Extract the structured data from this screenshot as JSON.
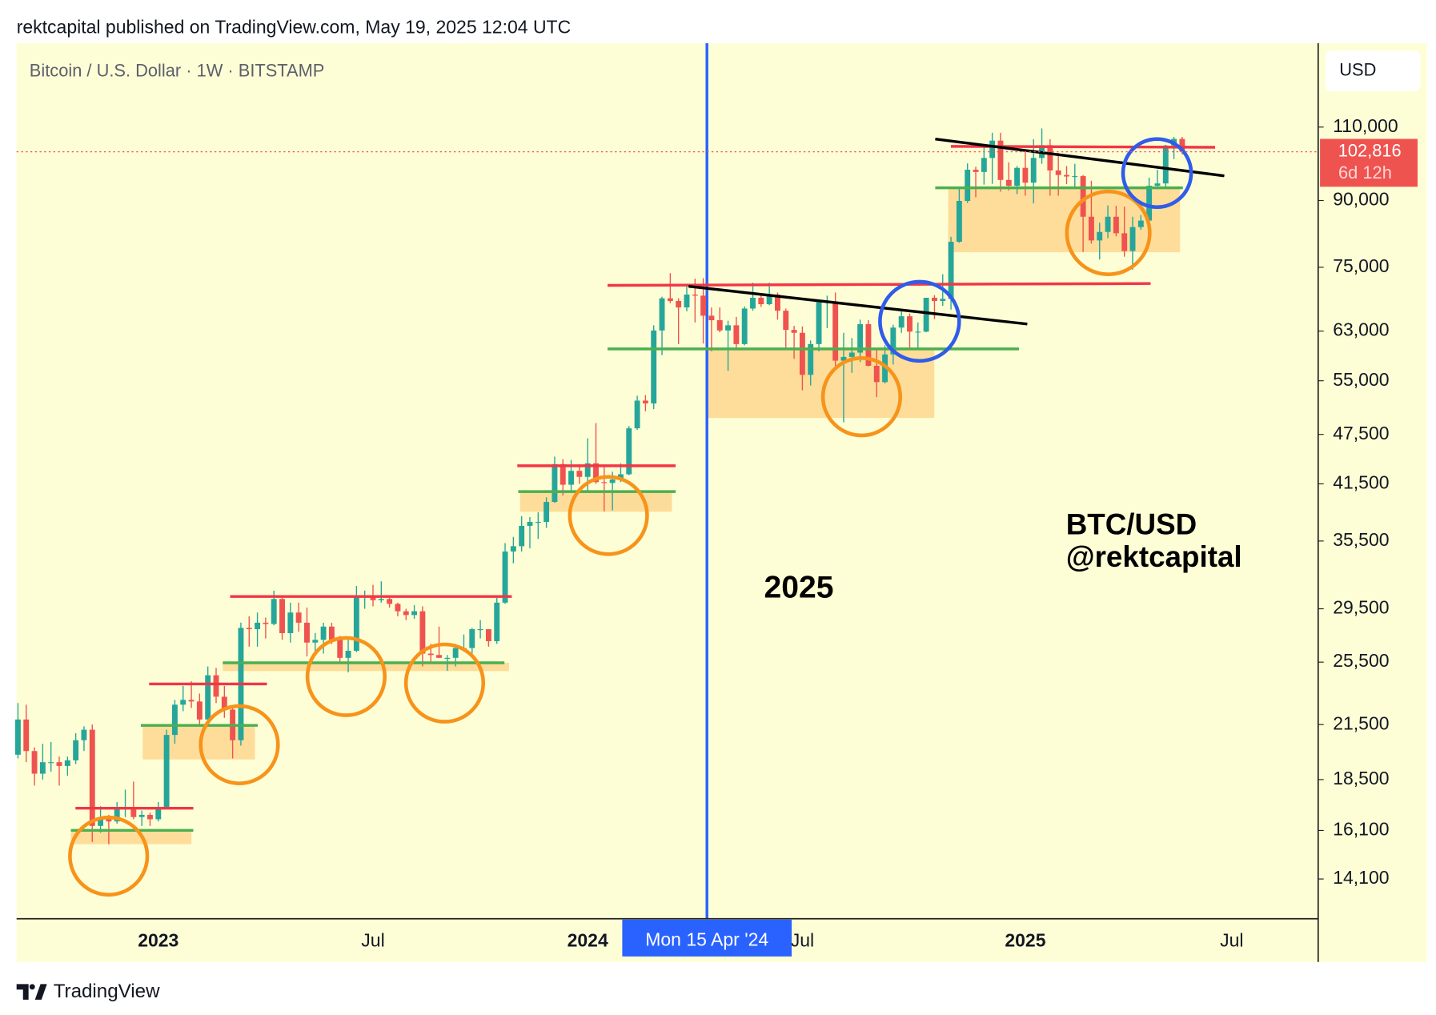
{
  "chart_data": {
    "type": "candlestick",
    "publisher_line": "rektcapital published on TradingView.com, May 19, 2025 12:04 UTC",
    "title": "Bitcoin / U.S. Dollar · 1W · BITSTAMP",
    "currency": "USD",
    "annotations": [
      "2025",
      "BTC/USD",
      "@rektcapital"
    ],
    "brand": "TradingView",
    "crosshair_label": "Mon 15 Apr '24",
    "log_scale": true,
    "up_color": "#26a69a",
    "down_color": "#ef5350",
    "ylim": [
      12650,
      138300
    ],
    "yticks": [
      {
        "value": 110000,
        "label": "110,000"
      },
      {
        "value": 90000,
        "label": "90,000"
      },
      {
        "value": 75000,
        "label": "75,000"
      },
      {
        "value": 63000,
        "label": "63,000"
      },
      {
        "value": 55000,
        "label": "55,000"
      },
      {
        "value": 47500,
        "label": "47,500"
      },
      {
        "value": 41500,
        "label": "41,500"
      },
      {
        "value": 35500,
        "label": "35,500"
      },
      {
        "value": 29500,
        "label": "29,500"
      },
      {
        "value": 25500,
        "label": "25,500"
      },
      {
        "value": 21500,
        "label": "21,500"
      },
      {
        "value": 18500,
        "label": "18,500"
      },
      {
        "value": 16100,
        "label": "16,100"
      },
      {
        "value": 14100,
        "label": "14,100"
      }
    ],
    "last_price": {
      "value": 102816,
      "label": "102,816"
    },
    "countdown": "6d 12h",
    "categories": [
      null,
      null,
      null,
      null,
      null,
      null,
      null,
      null,
      null,
      null,
      null,
      null,
      null,
      null,
      null,
      null,
      null,
      "2023",
      null,
      null,
      null,
      null,
      null,
      null,
      null,
      null,
      null,
      null,
      null,
      null,
      null,
      null,
      null,
      null,
      null,
      null,
      null,
      null,
      null,
      null,
      null,
      null,
      null,
      "Jul",
      null,
      null,
      null,
      null,
      null,
      null,
      null,
      null,
      null,
      null,
      null,
      null,
      null,
      null,
      null,
      null,
      null,
      null,
      null,
      null,
      null,
      null,
      null,
      null,
      null,
      "2024",
      null,
      null,
      null,
      null,
      null,
      null,
      null,
      null,
      null,
      null,
      null,
      null,
      null,
      null,
      null,
      null,
      null,
      null,
      null,
      null,
      null,
      null,
      null,
      null,
      null,
      "Jul",
      null,
      null,
      null,
      null,
      null,
      null,
      null,
      null,
      null,
      null,
      null,
      null,
      null,
      null,
      null,
      null,
      null,
      null,
      null,
      null,
      null,
      null,
      null,
      null,
      null,
      null,
      "2025",
      null,
      null,
      null,
      null,
      null,
      null,
      null,
      null,
      null,
      null,
      null,
      null,
      null,
      null,
      null,
      null,
      null,
      null,
      null,
      null,
      null,
      null,
      null,
      null,
      "Jul"
    ],
    "ohlc": [
      [
        19800,
        22800,
        19600,
        21800
      ],
      [
        21800,
        22700,
        19400,
        20000
      ],
      [
        20000,
        20200,
        18200,
        18800
      ],
      [
        18800,
        20400,
        18500,
        19400
      ],
      [
        19400,
        20500,
        18900,
        19400
      ],
      [
        19400,
        19700,
        18200,
        19200
      ],
      [
        19200,
        19700,
        18700,
        19500
      ],
      [
        19500,
        21000,
        19300,
        20600
      ],
      [
        20600,
        21400,
        20000,
        21200
      ],
      [
        21200,
        21500,
        15600,
        16300
      ],
      [
        16300,
        17200,
        16000,
        16600
      ],
      [
        16600,
        16800,
        15500,
        16500
      ],
      [
        16500,
        17400,
        16400,
        17100
      ],
      [
        17100,
        18000,
        16700,
        17100
      ],
      [
        17100,
        18400,
        16600,
        16700
      ],
      [
        16700,
        17000,
        16300,
        16800
      ],
      [
        16800,
        16900,
        16300,
        16600
      ],
      [
        16600,
        17400,
        16500,
        17100
      ],
      [
        17100,
        21200,
        17100,
        20900
      ],
      [
        20900,
        23000,
        20400,
        22700
      ],
      [
        22700,
        23900,
        22300,
        23000
      ],
      [
        23000,
        24200,
        22500,
        22900
      ],
      [
        22900,
        23400,
        21400,
        21800
      ],
      [
        21800,
        25200,
        21400,
        24600
      ],
      [
        24600,
        25100,
        22800,
        23200
      ],
      [
        23200,
        23900,
        21900,
        22400
      ],
      [
        22400,
        22600,
        19600,
        20600
      ],
      [
        20600,
        28400,
        20300,
        28000
      ],
      [
        28000,
        28900,
        26600,
        27900
      ],
      [
        27900,
        29200,
        26600,
        28400
      ],
      [
        28400,
        28800,
        27200,
        28300
      ],
      [
        28300,
        31000,
        28200,
        30300
      ],
      [
        30300,
        30400,
        27100,
        27600
      ],
      [
        27600,
        30000,
        26900,
        29200
      ],
      [
        29200,
        30000,
        27700,
        28400
      ],
      [
        28400,
        29600,
        25900,
        26900
      ],
      [
        26900,
        27600,
        26300,
        27100
      ],
      [
        27100,
        28400,
        26100,
        28100
      ],
      [
        28100,
        28400,
        26800,
        27100
      ],
      [
        27100,
        27400,
        25400,
        25800
      ],
      [
        25800,
        27100,
        24800,
        26300
      ],
      [
        26300,
        31400,
        26200,
        30500
      ],
      [
        30500,
        31000,
        29500,
        30600
      ],
      [
        30600,
        31500,
        29700,
        30200
      ],
      [
        30200,
        31800,
        30000,
        30300
      ],
      [
        30300,
        30400,
        29600,
        29900
      ],
      [
        29900,
        30000,
        28900,
        29300
      ],
      [
        29300,
        29500,
        28600,
        29000
      ],
      [
        29000,
        29800,
        28700,
        29300
      ],
      [
        29300,
        29700,
        25200,
        26100
      ],
      [
        26100,
        26800,
        25400,
        26000
      ],
      [
        26000,
        28100,
        25800,
        25800
      ],
      [
        25800,
        26000,
        24900,
        25800
      ],
      [
        25800,
        26800,
        25200,
        26500
      ],
      [
        26500,
        27500,
        26300,
        26500
      ],
      [
        26500,
        28000,
        26000,
        27900
      ],
      [
        27900,
        28600,
        27200,
        27900
      ],
      [
        27900,
        27900,
        26600,
        27000
      ],
      [
        27000,
        30400,
        26800,
        30000
      ],
      [
        30000,
        35300,
        29900,
        34500
      ],
      [
        34500,
        35900,
        33400,
        35000
      ],
      [
        35000,
        38000,
        34500,
        37000
      ],
      [
        37000,
        37900,
        34800,
        37400
      ],
      [
        37400,
        38400,
        35700,
        37400
      ],
      [
        37400,
        40000,
        36800,
        39500
      ],
      [
        39500,
        44700,
        39400,
        43800
      ],
      [
        43800,
        44400,
        40200,
        41400
      ],
      [
        41400,
        44300,
        40600,
        43000
      ],
      [
        43000,
        43800,
        41500,
        42300
      ],
      [
        42300,
        47000,
        40700,
        43900
      ],
      [
        43900,
        49000,
        41500,
        41700
      ],
      [
        41700,
        43600,
        38500,
        41600
      ],
      [
        41600,
        42900,
        38600,
        42000
      ],
      [
        42000,
        43900,
        41700,
        42600
      ],
      [
        42600,
        48600,
        42500,
        48300
      ],
      [
        48300,
        52800,
        48100,
        52100
      ],
      [
        52100,
        52900,
        50600,
        51700
      ],
      [
        51700,
        64000,
        50900,
        63100
      ],
      [
        63100,
        69200,
        59000,
        68900
      ],
      [
        68900,
        73800,
        68000,
        68400
      ],
      [
        68400,
        68900,
        60800,
        67200
      ],
      [
        67200,
        71700,
        66500,
        69600
      ],
      [
        69600,
        72700,
        64500,
        69400
      ],
      [
        69400,
        72800,
        60900,
        65700
      ],
      [
        65700,
        67200,
        59600,
        64900
      ],
      [
        64900,
        67200,
        62800,
        63100
      ],
      [
        63100,
        64800,
        56500,
        64000
      ],
      [
        64000,
        65500,
        60200,
        60800
      ],
      [
        60800,
        67400,
        60600,
        67000
      ],
      [
        67000,
        71900,
        66600,
        69000
      ],
      [
        69000,
        69500,
        67300,
        67800
      ],
      [
        67800,
        71900,
        67600,
        69600
      ],
      [
        69600,
        70000,
        65000,
        66600
      ],
      [
        66600,
        67000,
        60200,
        63200
      ],
      [
        63200,
        63900,
        58400,
        62700
      ],
      [
        62700,
        63800,
        53600,
        55900
      ],
      [
        55900,
        61400,
        54300,
        60800
      ],
      [
        60800,
        68400,
        59600,
        68200
      ],
      [
        68200,
        69400,
        63500,
        68300
      ],
      [
        68300,
        70000,
        57300,
        58100
      ],
      [
        58100,
        62700,
        49100,
        58700
      ],
      [
        58700,
        61800,
        56200,
        59400
      ],
      [
        59400,
        65000,
        57900,
        64200
      ],
      [
        64200,
        64900,
        57200,
        57300
      ],
      [
        57300,
        59800,
        52600,
        54800
      ],
      [
        54800,
        60600,
        54600,
        59100
      ],
      [
        59100,
        64100,
        57500,
        63600
      ],
      [
        63600,
        66500,
        62700,
        65600
      ],
      [
        65600,
        66100,
        59900,
        62900
      ],
      [
        62900,
        64500,
        59900,
        62900
      ],
      [
        62900,
        69000,
        62800,
        69000
      ],
      [
        69000,
        69500,
        65100,
        68400
      ],
      [
        68400,
        73600,
        67500,
        68800
      ],
      [
        68800,
        81500,
        66800,
        80400
      ],
      [
        80400,
        93500,
        80200,
        89900
      ],
      [
        89900,
        99600,
        89400,
        97900
      ],
      [
        97900,
        98700,
        90800,
        97300
      ],
      [
        97300,
        104000,
        94000,
        101100
      ],
      [
        101100,
        108300,
        94200,
        106000
      ],
      [
        106000,
        108300,
        92200,
        95200
      ],
      [
        95200,
        99900,
        92500,
        93700
      ],
      [
        93700,
        98900,
        91600,
        98400
      ],
      [
        98400,
        102700,
        91200,
        94500
      ],
      [
        94500,
        106400,
        89300,
        101100
      ],
      [
        101100,
        109600,
        99500,
        104700
      ],
      [
        104700,
        106400,
        91200,
        97700
      ],
      [
        97700,
        102500,
        91200,
        96500
      ],
      [
        96500,
        98900,
        94100,
        96100
      ],
      [
        96100,
        99500,
        93400,
        96200
      ],
      [
        96200,
        96500,
        78200,
        86100
      ],
      [
        86100,
        95000,
        80000,
        80700
      ],
      [
        80700,
        84700,
        76600,
        82600
      ],
      [
        82600,
        88800,
        81200,
        86100
      ],
      [
        86100,
        88700,
        81600,
        82300
      ],
      [
        82300,
        88500,
        77200,
        78400
      ],
      [
        78400,
        86100,
        74500,
        83700
      ],
      [
        83700,
        86500,
        83100,
        85200
      ],
      [
        85200,
        95800,
        83900,
        93700
      ],
      [
        93700,
        97900,
        92800,
        94300
      ],
      [
        94300,
        104800,
        93400,
        104600
      ],
      [
        104600,
        107100,
        100800,
        106500
      ],
      [
        106500,
        107100,
        102100,
        102816
      ],
      null,
      null,
      null,
      null,
      null,
      null
    ]
  }
}
